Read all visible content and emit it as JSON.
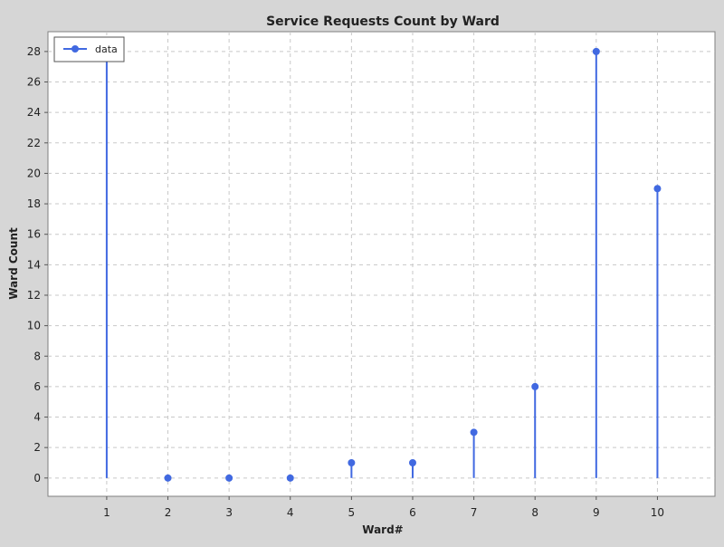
{
  "chart_data": {
    "type": "stem",
    "title": "Service Requests Count by Ward",
    "xlabel": "Ward#",
    "ylabel": "Ward Count",
    "x": [
      1,
      2,
      3,
      4,
      5,
      6,
      7,
      8,
      9,
      10
    ],
    "series": [
      {
        "name": "data",
        "values": [
          28,
          0,
          0,
          0,
          1,
          1,
          3,
          6,
          28,
          19
        ],
        "color": "#4169e1"
      }
    ],
    "xlim": [
      0.04,
      10.94
    ],
    "ylim": [
      -1.2,
      29.3
    ],
    "xticks": [
      1,
      2,
      3,
      4,
      5,
      6,
      7,
      8,
      9,
      10
    ],
    "yticks": [
      0,
      2,
      4,
      6,
      8,
      10,
      12,
      14,
      16,
      18,
      20,
      22,
      24,
      26,
      28
    ],
    "grid": true,
    "legend_position": "top-left",
    "background_color": "#ffffff",
    "frame_color": "#d6d6d6"
  }
}
